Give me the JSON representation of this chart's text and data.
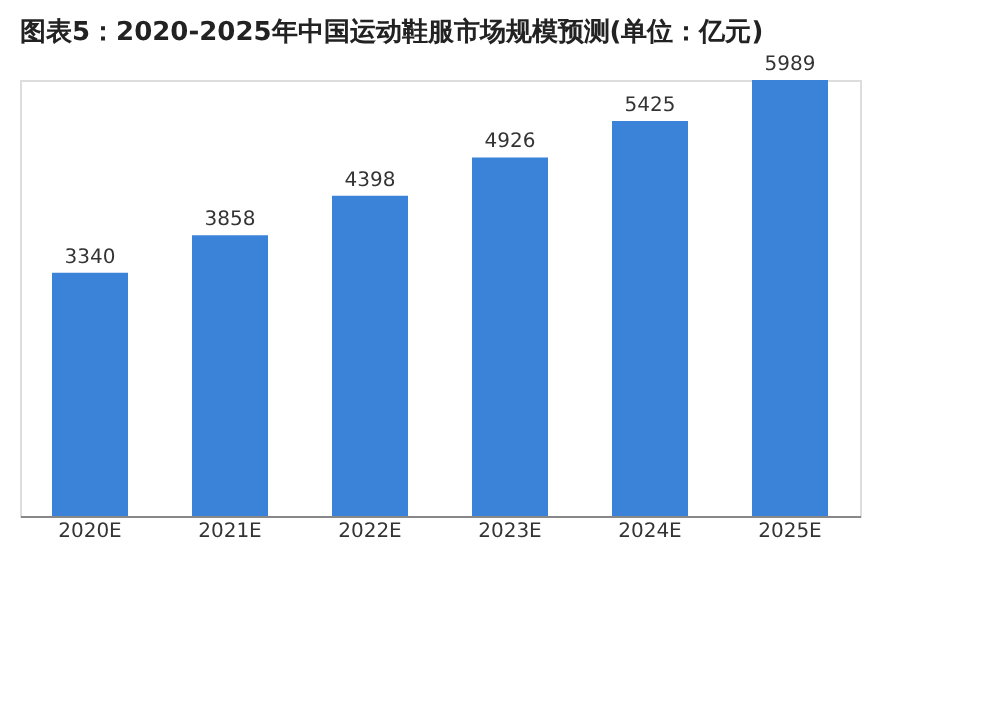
{
  "chart_data": {
    "type": "bar",
    "title": "图表5：2020-2025年中国运动鞋服市场规模预测(单位：亿元)",
    "categories": [
      "2020E",
      "2021E",
      "2022E",
      "2023E",
      "2024E",
      "2025E"
    ],
    "values": [
      3340,
      3858,
      4398,
      4926,
      5425,
      5989
    ],
    "color": "#3b82d9",
    "data_labels": true,
    "grid": false
  }
}
